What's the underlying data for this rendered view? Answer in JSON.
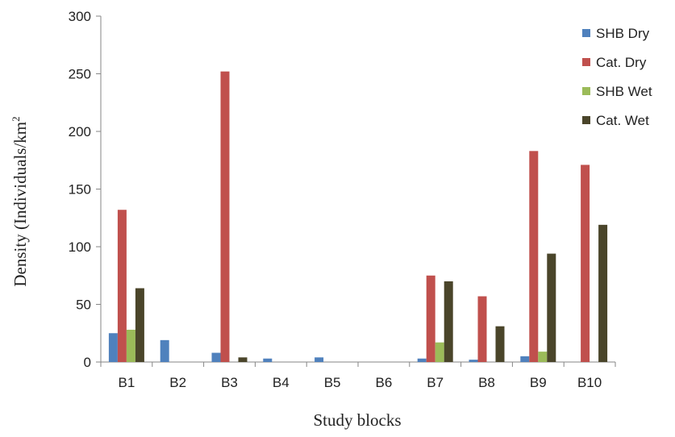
{
  "chart_data": {
    "type": "bar",
    "title": "",
    "xlabel": "Study blocks",
    "ylabel": "Density (Individuals/km",
    "ylabel_superscript": "2",
    "ylim": [
      0,
      300
    ],
    "yticks": [
      "0",
      "50",
      "100",
      "150",
      "200",
      "250",
      "300"
    ],
    "grid": false,
    "legend_position": "right",
    "categories": [
      "B1",
      "B2",
      "B3",
      "B4",
      "B5",
      "B6",
      "B7",
      "B8",
      "B9",
      "B10"
    ],
    "series": [
      {
        "name": "SHB Dry",
        "color": "#4F81BD",
        "values": [
          25,
          19,
          8,
          3,
          4,
          0,
          3,
          2,
          5,
          0
        ]
      },
      {
        "name": "Cat. Dry",
        "color": "#C0504D",
        "values": [
          132,
          0,
          252,
          0,
          0,
          0,
          75,
          57,
          183,
          171
        ]
      },
      {
        "name": "SHB Wet",
        "color": "#9BBB59",
        "values": [
          28,
          0,
          0,
          0,
          0,
          0,
          17,
          0,
          9,
          0
        ]
      },
      {
        "name": "Cat. Wet",
        "color": "#4A452A",
        "values": [
          64,
          0,
          4,
          0,
          0,
          0,
          70,
          31,
          94,
          119
        ]
      }
    ]
  }
}
